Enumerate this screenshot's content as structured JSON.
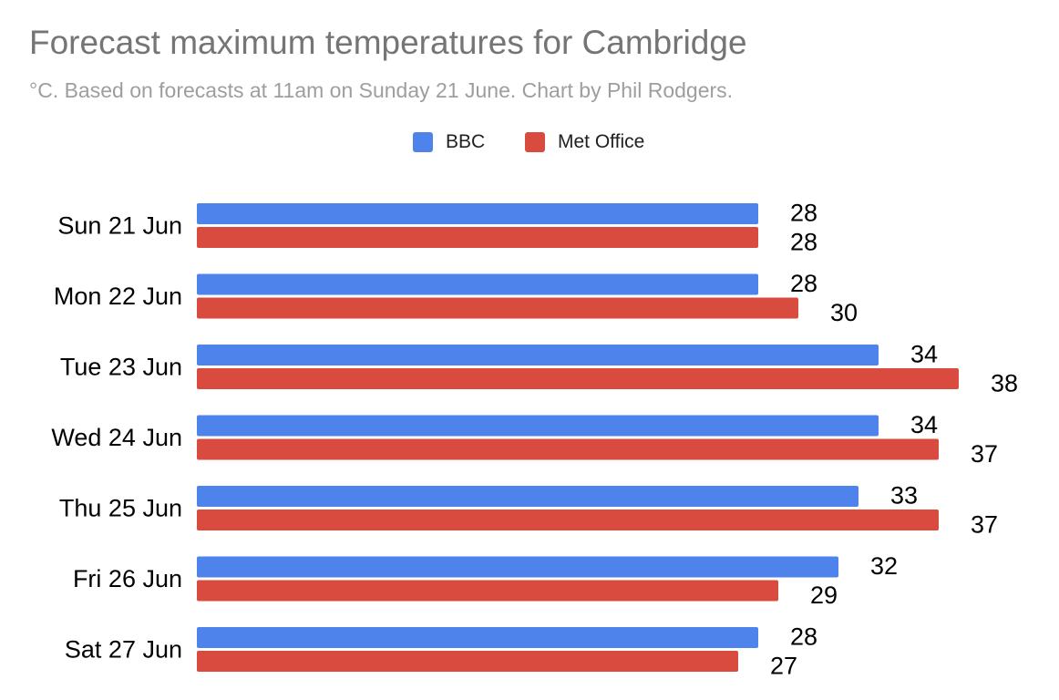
{
  "chart_data": {
    "type": "bar",
    "orientation": "horizontal",
    "title": "Forecast maximum temperatures for Cambridge",
    "subtitle": "°C. Based on forecasts at 11am on Sunday 21 June. Chart by Phil Rodgers.",
    "categories": [
      "Sun 21 Jun",
      "Mon 22 Jun",
      "Tue 23 Jun",
      "Wed 24 Jun",
      "Thu 25 Jun",
      "Fri 26 Jun",
      "Sat 27 Jun"
    ],
    "series": [
      {
        "name": "BBC",
        "color": "#4f83ec",
        "values": [
          28,
          28,
          34,
          34,
          33,
          32,
          28
        ]
      },
      {
        "name": "Met Office",
        "color": "#d84b3e",
        "values": [
          28,
          30,
          38,
          37,
          37,
          29,
          27
        ]
      }
    ],
    "xlim": [
      0,
      38
    ],
    "grid": false,
    "legend": "top-center",
    "data_labels": true
  }
}
